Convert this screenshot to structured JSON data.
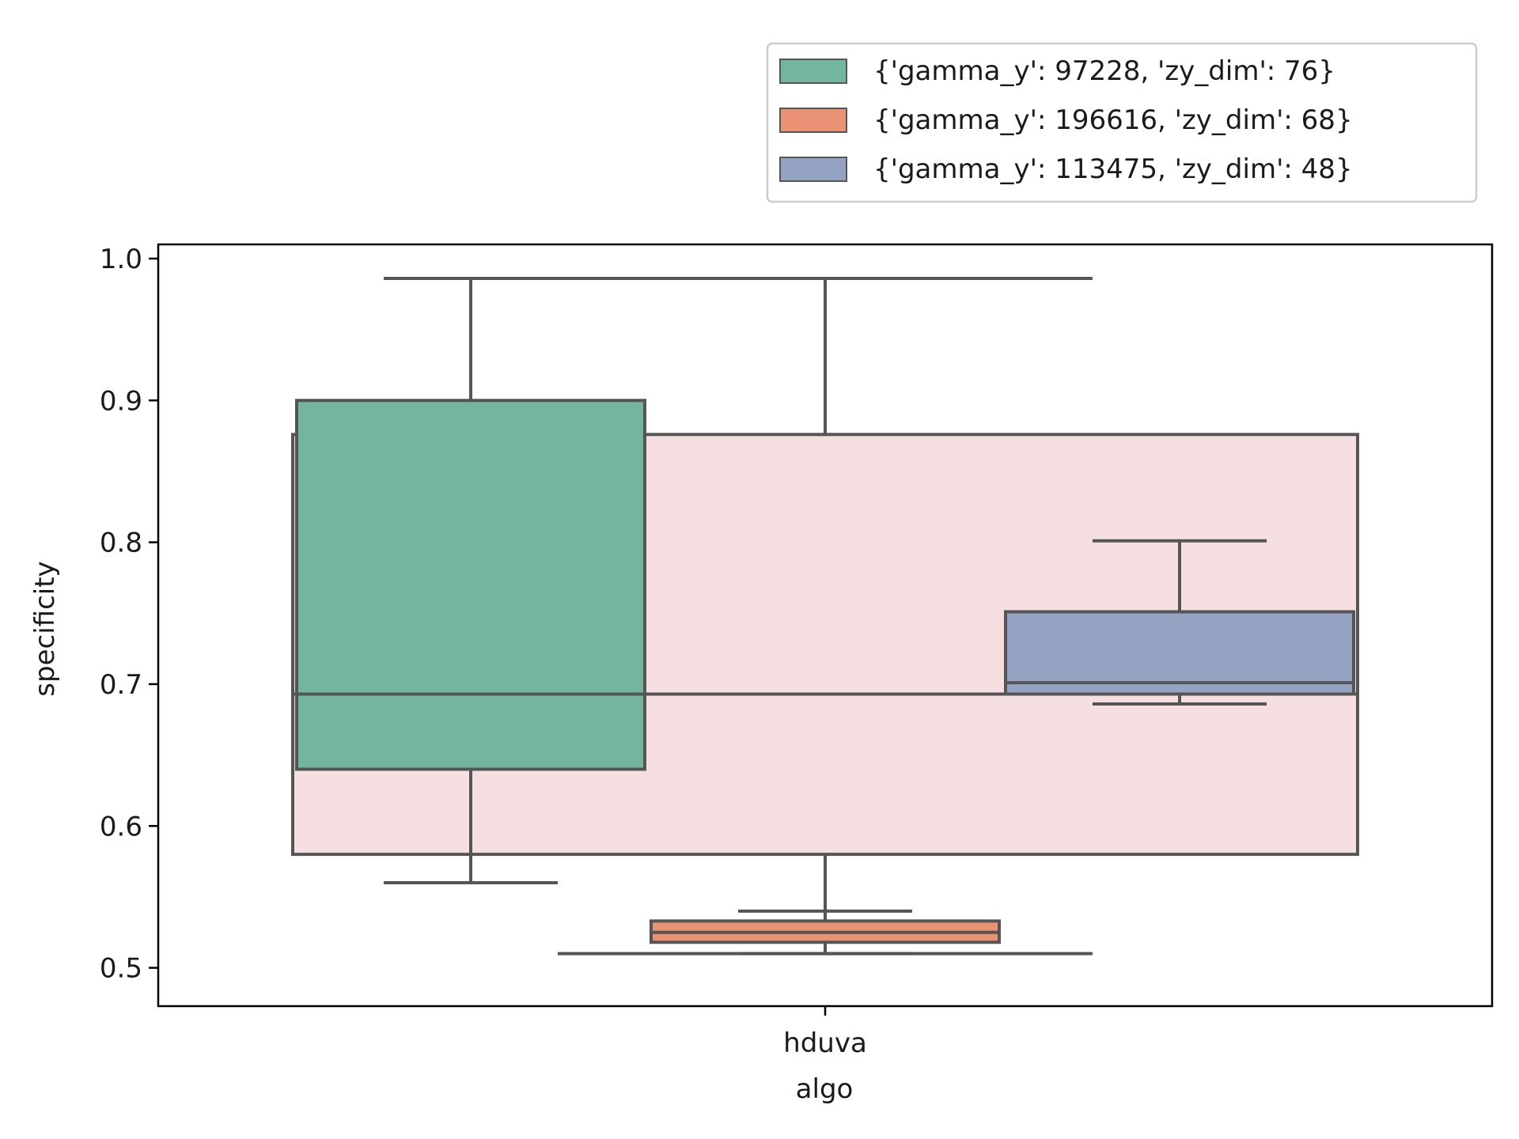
{
  "chart_data": {
    "type": "box",
    "title": "",
    "xlabel": "algo",
    "ylabel": "specificity",
    "categories": [
      "hduva"
    ],
    "ylim": [
      0.473,
      1.01
    ],
    "yticks": [
      "0.5",
      "0.6",
      "0.7",
      "0.8",
      "0.9",
      "1.0"
    ],
    "grid": false,
    "legend_position": "top-right (above plot)",
    "background_box": {
      "color": "#f5dfe0",
      "whisker_low": 0.51,
      "q1": 0.58,
      "median": 0.693,
      "q3": 0.876,
      "whisker_high": 0.986
    },
    "series": [
      {
        "name": "{'gamma_y': 97228, 'zy_dim': 76}",
        "color": "#74b5a0",
        "whisker_low": 0.56,
        "q1": 0.64,
        "median": 0.693,
        "q3": 0.9,
        "whisker_high": 0.986
      },
      {
        "name": "{'gamma_y': 196616, 'zy_dim': 68}",
        "color": "#e99274",
        "whisker_low": 0.51,
        "q1": 0.518,
        "median": 0.525,
        "q3": 0.533,
        "whisker_high": 0.54
      },
      {
        "name": "{'gamma_y': 113475, 'zy_dim': 48}",
        "color": "#95a3c3",
        "whisker_low": 0.686,
        "q1": 0.693,
        "median": 0.701,
        "q3": 0.751,
        "whisker_high": 0.801
      }
    ]
  }
}
